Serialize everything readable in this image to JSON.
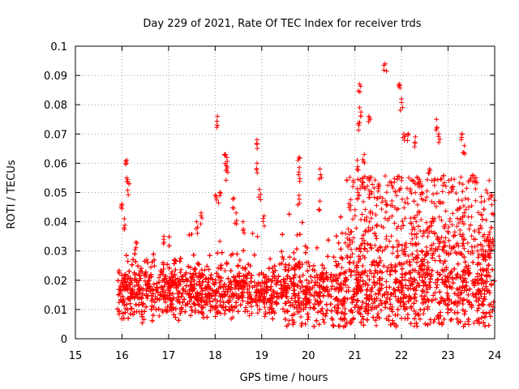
{
  "chart_data": {
    "type": "scatter",
    "title": "Day 229 of 2021, Rate Of TEC Index for receiver trds",
    "xlabel": "GPS time / hours",
    "ylabel": "ROTI / TECUs",
    "xlim": [
      15,
      24
    ],
    "ylim": [
      0,
      0.1
    ],
    "x_ticks": [
      "15",
      "16",
      "17",
      "18",
      "19",
      "20",
      "21",
      "22",
      "23",
      "24"
    ],
    "y_ticks": [
      "0",
      "0.01",
      "0.02",
      "0.03",
      "0.04",
      "0.05",
      "0.06",
      "0.07",
      "0.08",
      "0.09",
      "0.1"
    ],
    "grid": true,
    "marker": "+",
    "color": "#ff0000",
    "series": [
      {
        "name": "ROTI",
        "description_points": "baseline cluster 0.005-0.03 TECU from 15.9 to 24 h with peaks listed",
        "peaks": [
          {
            "x": 16.1,
            "y": 0.061
          },
          {
            "x": 16.1,
            "y": 0.055
          },
          {
            "x": 16.15,
            "y": 0.053
          },
          {
            "x": 16.0,
            "y": 0.046
          },
          {
            "x": 16.05,
            "y": 0.041
          },
          {
            "x": 16.3,
            "y": 0.033
          },
          {
            "x": 16.9,
            "y": 0.035
          },
          {
            "x": 17.6,
            "y": 0.04
          },
          {
            "x": 17.7,
            "y": 0.043
          },
          {
            "x": 18.05,
            "y": 0.076
          },
          {
            "x": 18.0,
            "y": 0.049
          },
          {
            "x": 18.1,
            "y": 0.05
          },
          {
            "x": 18.2,
            "y": 0.063
          },
          {
            "x": 18.25,
            "y": 0.062
          },
          {
            "x": 18.25,
            "y": 0.058
          },
          {
            "x": 18.4,
            "y": 0.048
          },
          {
            "x": 18.45,
            "y": 0.043
          },
          {
            "x": 18.6,
            "y": 0.04
          },
          {
            "x": 18.9,
            "y": 0.068
          },
          {
            "x": 18.9,
            "y": 0.06
          },
          {
            "x": 18.95,
            "y": 0.051
          },
          {
            "x": 19.05,
            "y": 0.042
          },
          {
            "x": 19.8,
            "y": 0.062
          },
          {
            "x": 19.8,
            "y": 0.057
          },
          {
            "x": 19.8,
            "y": 0.049
          },
          {
            "x": 20.25,
            "y": 0.058
          },
          {
            "x": 20.25,
            "y": 0.047
          },
          {
            "x": 21.1,
            "y": 0.087
          },
          {
            "x": 21.1,
            "y": 0.079
          },
          {
            "x": 21.1,
            "y": 0.074
          },
          {
            "x": 21.2,
            "y": 0.063
          },
          {
            "x": 21.3,
            "y": 0.076
          },
          {
            "x": 21.05,
            "y": 0.061
          },
          {
            "x": 21.5,
            "y": 0.052
          },
          {
            "x": 21.65,
            "y": 0.094
          },
          {
            "x": 21.95,
            "y": 0.087
          },
          {
            "x": 22.0,
            "y": 0.082
          },
          {
            "x": 22.05,
            "y": 0.07
          },
          {
            "x": 22.15,
            "y": 0.07
          },
          {
            "x": 22.3,
            "y": 0.069
          },
          {
            "x": 22.75,
            "y": 0.075
          },
          {
            "x": 22.8,
            "y": 0.07
          },
          {
            "x": 23.3,
            "y": 0.07
          },
          {
            "x": 23.35,
            "y": 0.066
          },
          {
            "x": 23.6,
            "y": 0.055
          },
          {
            "x": 23.1,
            "y": 0.052
          },
          {
            "x": 22.6,
            "y": 0.058
          }
        ]
      }
    ]
  }
}
